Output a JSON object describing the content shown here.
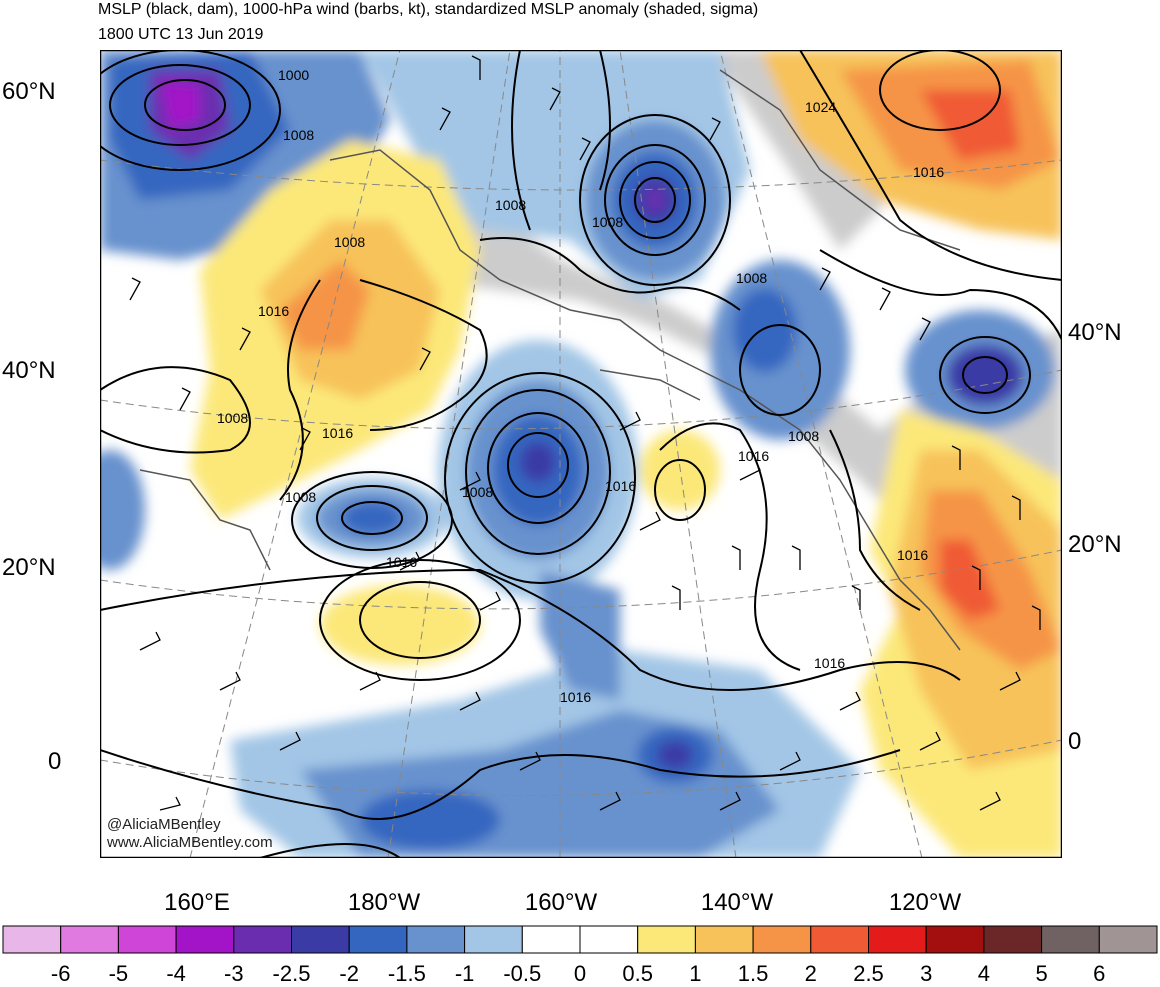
{
  "title": {
    "line1": "MSLP (black, dam), 1000-hPa wind (barbs, kt), standardized MSLP anomaly (shaded, sigma)",
    "line2": "1800 UTC 13 Jun 2019"
  },
  "lat_labels": {
    "left": [
      "60°N",
      "40°N",
      "20°N",
      "0"
    ],
    "right": [
      "40°N",
      "20°N",
      "0"
    ]
  },
  "lon_labels": [
    "160°E",
    "180°W",
    "160°W",
    "140°W",
    "120°W"
  ],
  "contour_labels": [
    "1000",
    "1008",
    "1008",
    "1008",
    "1008",
    "1008",
    "1008",
    "1008",
    "1008",
    "1008",
    "1016",
    "1016",
    "1016",
    "1016",
    "1016",
    "1016",
    "1016",
    "1016",
    "1024"
  ],
  "colorbar": {
    "colors": [
      "#e8b6e8",
      "#e07ae0",
      "#cf45d8",
      "#a314c8",
      "#6a2db0",
      "#3b3ba6",
      "#3466c0",
      "#6892ce",
      "#a3c6e6",
      "#ffffff",
      "#ffffff",
      "#fce879",
      "#f7c25a",
      "#f59447",
      "#f05a35",
      "#e31b1b",
      "#a30e0e",
      "#6b2727",
      "#706262",
      "#a09494"
    ],
    "labels": [
      "-6",
      "-5",
      "-4",
      "-3",
      "-2.5",
      "-2",
      "-1.5",
      "-1",
      "-0.5",
      "0",
      "0.5",
      "1",
      "1.5",
      "2",
      "2.5",
      "3",
      "4",
      "5",
      "6"
    ]
  },
  "credits": [
    "@AliciaMBentley",
    "www.AliciaMBentley.com"
  ]
}
